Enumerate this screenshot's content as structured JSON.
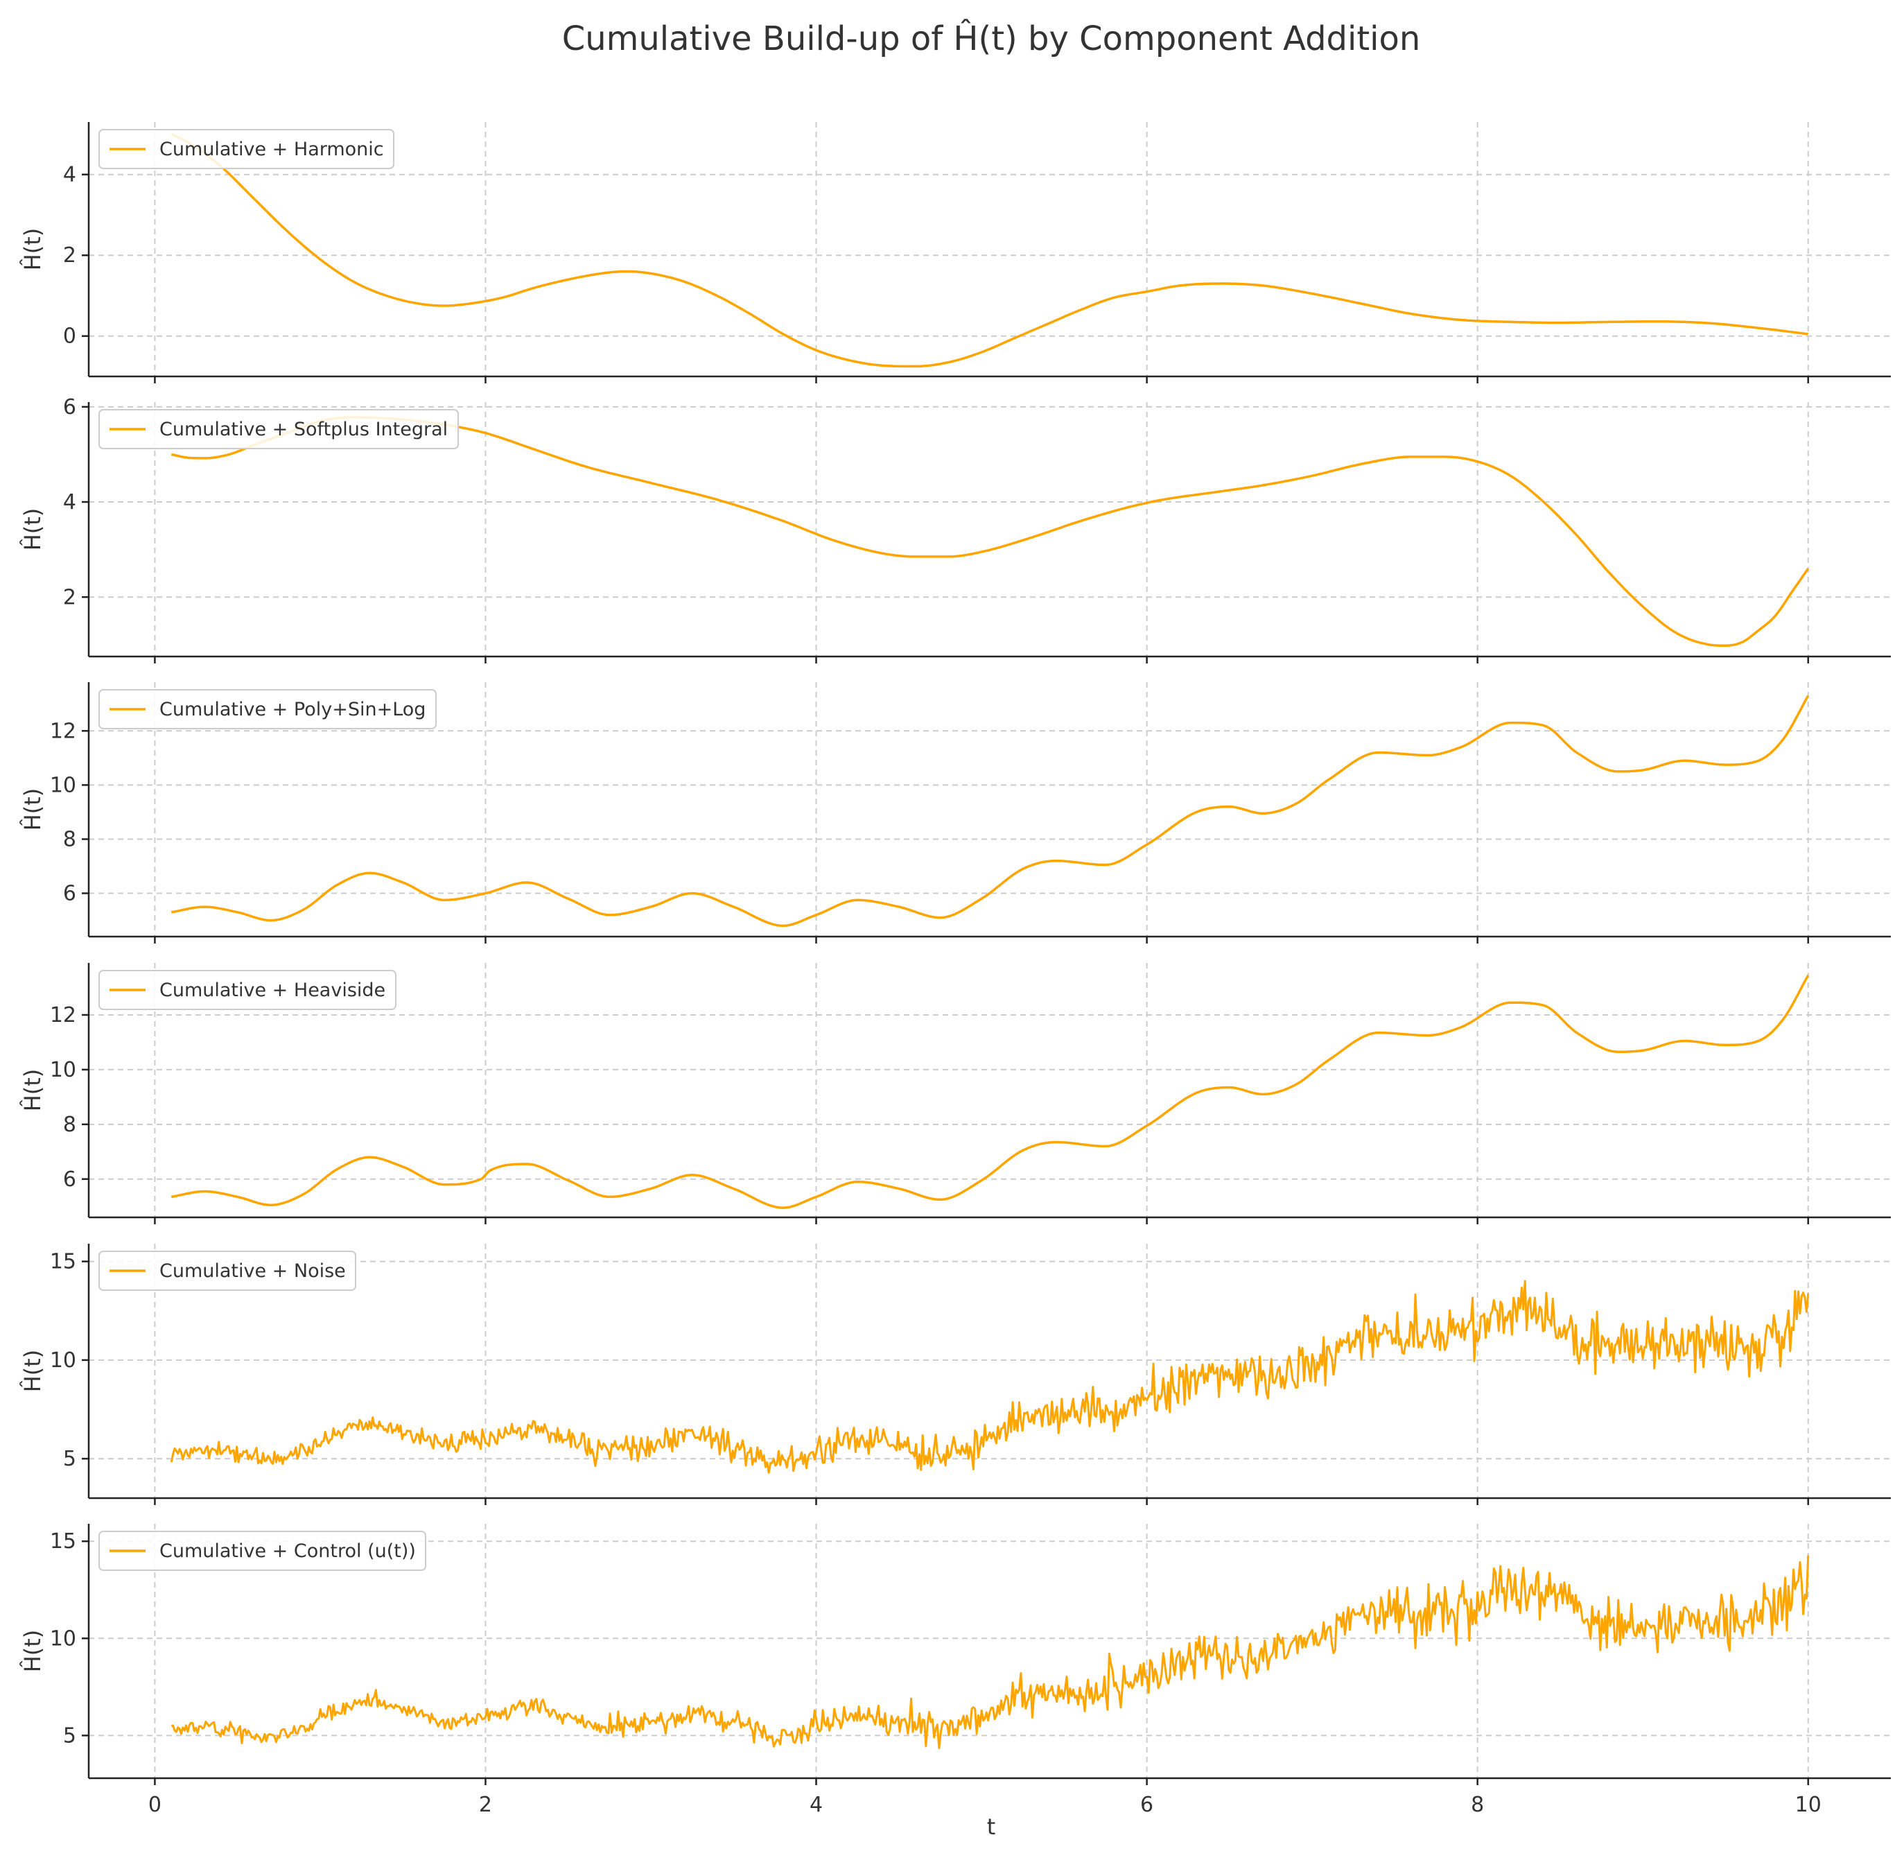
{
  "chart_data": {
    "type": "line",
    "title": "Cumulative Build-up of Ĥ(t) by Component Addition",
    "xlabel": "t",
    "xlim": [
      -0.4,
      10.5
    ],
    "xticks": [
      0,
      2,
      4,
      6,
      8,
      10
    ],
    "line_color": "#FFA500",
    "grid": true,
    "legend_position": "upper-left",
    "panels": [
      {
        "ylabel": "Ĥ(t)",
        "ylim": [
          -1.0,
          5.3
        ],
        "yticks": [
          0,
          2,
          4
        ],
        "series": [
          {
            "name": "Cumulative + Harmonic",
            "style": "smooth",
            "x": [
              0.1,
              0.2,
              0.4,
              0.6,
              0.8,
              1.0,
              1.2,
              1.4,
              1.6,
              1.75,
              1.9,
              2.1,
              2.3,
              2.5,
              2.7,
              2.85,
              3.0,
              3.2,
              3.4,
              3.6,
              3.8,
              4.0,
              4.2,
              4.4,
              4.6,
              4.8,
              5.0,
              5.2,
              5.4,
              5.6,
              5.8,
              6.0,
              6.2,
              6.45,
              6.7,
              7.0,
              7.3,
              7.6,
              7.9,
              8.2,
              8.5,
              8.8,
              9.1,
              9.4,
              9.7,
              10.0
            ],
            "y": [
              5.0,
              4.8,
              4.2,
              3.4,
              2.6,
              1.9,
              1.35,
              1.0,
              0.8,
              0.75,
              0.8,
              0.95,
              1.2,
              1.4,
              1.55,
              1.6,
              1.55,
              1.35,
              1.0,
              0.55,
              0.05,
              -0.35,
              -0.6,
              -0.73,
              -0.75,
              -0.65,
              -0.4,
              -0.05,
              0.3,
              0.65,
              0.95,
              1.1,
              1.25,
              1.3,
              1.25,
              1.05,
              0.8,
              0.55,
              0.4,
              0.35,
              0.33,
              0.35,
              0.36,
              0.32,
              0.2,
              0.05
            ]
          }
        ]
      },
      {
        "ylabel": "Ĥ(t)",
        "ylim": [
          0.75,
          6.1
        ],
        "yticks": [
          2,
          4,
          6
        ],
        "series": [
          {
            "name": "Cumulative + Softplus Integral",
            "style": "smooth",
            "x": [
              0.1,
              0.2,
              0.3,
              0.45,
              0.6,
              0.8,
              1.0,
              1.2,
              1.4,
              1.6,
              1.8,
              2.0,
              2.3,
              2.6,
              3.0,
              3.4,
              3.8,
              4.1,
              4.4,
              4.6,
              4.8,
              5.0,
              5.3,
              5.6,
              5.9,
              6.1,
              6.4,
              6.7,
              7.0,
              7.3,
              7.6,
              7.8,
              8.0,
              8.2,
              8.4,
              8.6,
              8.8,
              9.0,
              9.2,
              9.4,
              9.5,
              9.6,
              9.7,
              9.8,
              9.9,
              10.0
            ],
            "y": [
              5.0,
              4.93,
              4.92,
              5.0,
              5.2,
              5.45,
              5.7,
              5.78,
              5.76,
              5.7,
              5.6,
              5.45,
              5.1,
              4.75,
              4.4,
              4.05,
              3.6,
              3.2,
              2.92,
              2.85,
              2.85,
              2.95,
              3.25,
              3.6,
              3.9,
              4.05,
              4.2,
              4.35,
              4.55,
              4.8,
              4.95,
              4.95,
              4.85,
              4.55,
              4.0,
              3.3,
              2.5,
              1.8,
              1.25,
              1.0,
              0.98,
              1.05,
              1.3,
              1.6,
              2.1,
              2.6
            ]
          }
        ]
      },
      {
        "ylabel": "Ĥ(t)",
        "ylim": [
          4.4,
          13.8
        ],
        "yticks": [
          6,
          8,
          10,
          12
        ],
        "series": [
          {
            "name": "Cumulative + Poly+Sin+Log",
            "style": "smooth",
            "x": [
              0.1,
              0.3,
              0.5,
              0.7,
              0.9,
              1.1,
              1.3,
              1.5,
              1.75,
              2.0,
              2.25,
              2.5,
              2.75,
              3.0,
              3.25,
              3.5,
              3.8,
              4.0,
              4.25,
              4.5,
              4.75,
              5.0,
              5.25,
              5.45,
              5.75,
              6.0,
              6.3,
              6.5,
              6.7,
              6.9,
              7.1,
              7.4,
              7.7,
              7.9,
              8.2,
              8.4,
              8.6,
              8.85,
              9.0,
              9.25,
              9.5,
              9.7,
              9.85,
              10.0
            ],
            "y": [
              5.3,
              5.5,
              5.3,
              5.0,
              5.4,
              6.3,
              6.75,
              6.4,
              5.75,
              6.0,
              6.4,
              5.8,
              5.2,
              5.5,
              6.0,
              5.5,
              4.8,
              5.2,
              5.75,
              5.5,
              5.1,
              5.8,
              6.9,
              7.2,
              7.05,
              7.8,
              9.0,
              9.2,
              8.95,
              9.3,
              10.2,
              11.2,
              11.1,
              11.4,
              12.3,
              12.2,
              11.2,
              10.5,
              10.55,
              10.9,
              10.75,
              10.9,
              11.7,
              13.3
            ]
          }
        ]
      },
      {
        "ylabel": "Ĥ(t)",
        "ylim": [
          4.6,
          13.9
        ],
        "yticks": [
          6,
          8,
          10,
          12
        ],
        "series": [
          {
            "name": "Cumulative + Heaviside",
            "style": "smooth",
            "x": [
              0.1,
              0.3,
              0.5,
              0.7,
              0.9,
              1.1,
              1.3,
              1.5,
              1.75,
              1.99,
              2.01,
              2.25,
              2.5,
              2.75,
              3.0,
              3.25,
              3.5,
              3.8,
              4.0,
              4.25,
              4.5,
              4.75,
              5.0,
              5.25,
              5.45,
              5.75,
              6.0,
              6.3,
              6.5,
              6.7,
              6.9,
              7.1,
              7.4,
              7.7,
              7.9,
              8.2,
              8.4,
              8.6,
              8.85,
              9.0,
              9.25,
              9.5,
              9.7,
              9.85,
              10.0
            ],
            "y": [
              5.35,
              5.55,
              5.35,
              5.05,
              5.45,
              6.35,
              6.8,
              6.45,
              5.8,
              6.05,
              6.25,
              6.55,
              5.95,
              5.35,
              5.65,
              6.15,
              5.65,
              4.95,
              5.35,
              5.9,
              5.65,
              5.25,
              5.95,
              7.05,
              7.35,
              7.2,
              7.95,
              9.15,
              9.35,
              9.1,
              9.45,
              10.35,
              11.35,
              11.25,
              11.55,
              12.45,
              12.35,
              11.35,
              10.65,
              10.7,
              11.05,
              10.9,
              11.05,
              11.85,
              13.45
            ]
          }
        ]
      },
      {
        "ylabel": "Ĥ(t)",
        "ylim": [
          3.0,
          15.9
        ],
        "yticks": [
          5,
          10,
          15
        ],
        "series": [
          {
            "name": "Cumulative + Noise",
            "style": "noisy",
            "noise_amplitude": [
              0.35,
              0.35,
              0.45,
              0.6,
              0.7,
              0.8,
              1.0,
              1.1,
              1.2,
              1.3,
              1.4
            ],
            "x": [
              0.1,
              0.3,
              0.5,
              0.7,
              0.9,
              1.1,
              1.3,
              1.5,
              1.75,
              2.0,
              2.25,
              2.5,
              2.75,
              3.0,
              3.25,
              3.5,
              3.8,
              4.0,
              4.25,
              4.5,
              4.75,
              5.0,
              5.25,
              5.45,
              5.75,
              6.0,
              6.3,
              6.5,
              6.7,
              6.9,
              7.1,
              7.4,
              7.7,
              7.9,
              8.2,
              8.4,
              8.6,
              8.85,
              9.0,
              9.25,
              9.5,
              9.7,
              9.85,
              10.0
            ],
            "y": [
              5.3,
              5.5,
              5.3,
              5.0,
              5.4,
              6.3,
              6.75,
              6.4,
              5.75,
              6.0,
              6.55,
              5.95,
              5.35,
              5.65,
              6.15,
              5.65,
              4.95,
              5.35,
              5.9,
              5.65,
              5.25,
              5.95,
              7.05,
              7.35,
              7.2,
              7.95,
              9.15,
              9.35,
              9.1,
              9.45,
              10.35,
              11.35,
              11.25,
              11.55,
              12.45,
              12.35,
              11.35,
              10.65,
              10.7,
              11.05,
              10.9,
              11.05,
              11.85,
              13.3
            ]
          }
        ]
      },
      {
        "ylabel": "Ĥ(t)",
        "ylim": [
          2.8,
          15.9
        ],
        "yticks": [
          5,
          10,
          15
        ],
        "series": [
          {
            "name": "Cumulative + Control (u(t))",
            "style": "noisy",
            "noise_amplitude": [
              0.35,
              0.35,
              0.45,
              0.6,
              0.7,
              0.8,
              1.0,
              1.1,
              1.2,
              1.3,
              1.4
            ],
            "x": [
              0.1,
              0.3,
              0.5,
              0.7,
              0.9,
              1.1,
              1.3,
              1.5,
              1.75,
              2.0,
              2.25,
              2.5,
              2.75,
              3.0,
              3.25,
              3.5,
              3.8,
              4.0,
              4.25,
              4.5,
              4.75,
              5.0,
              5.25,
              5.45,
              5.75,
              6.0,
              6.3,
              6.5,
              6.7,
              6.9,
              7.1,
              7.4,
              7.7,
              7.9,
              8.2,
              8.4,
              8.6,
              8.85,
              9.0,
              9.25,
              9.5,
              9.7,
              9.85,
              10.0
            ],
            "y": [
              5.3,
              5.5,
              5.3,
              5.0,
              5.4,
              6.3,
              6.75,
              6.4,
              5.75,
              6.0,
              6.55,
              5.95,
              5.35,
              5.65,
              6.15,
              5.65,
              4.95,
              5.35,
              5.9,
              5.65,
              5.25,
              5.95,
              7.05,
              7.35,
              7.2,
              7.95,
              9.15,
              9.35,
              9.1,
              9.45,
              10.35,
              11.35,
              11.25,
              11.55,
              12.45,
              12.35,
              11.35,
              10.65,
              10.7,
              11.05,
              10.9,
              11.05,
              11.85,
              13.3
            ]
          }
        ]
      }
    ]
  }
}
